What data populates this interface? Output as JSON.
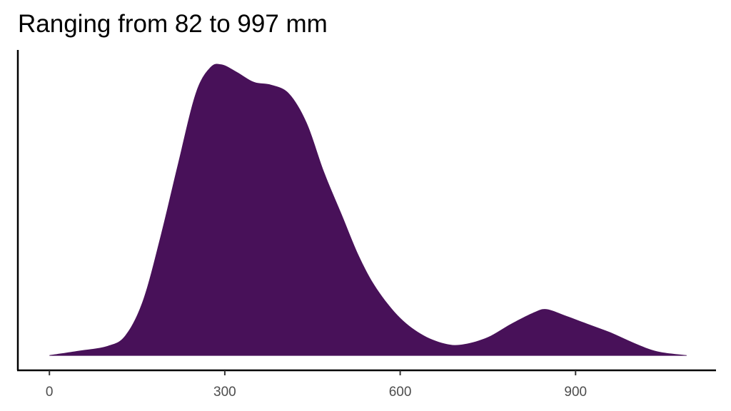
{
  "chart_data": {
    "type": "area",
    "title": "Ranging from 82 to 997 mm",
    "x": [
      0,
      50,
      100,
      130,
      160,
      190,
      220,
      250,
      275,
      295,
      320,
      350,
      380,
      410,
      440,
      470,
      500,
      530,
      560,
      600,
      640,
      680,
      710,
      750,
      790,
      830,
      850,
      880,
      920,
      960,
      1000,
      1040,
      1090
    ],
    "values": [
      0.002,
      0.017,
      0.034,
      0.07,
      0.19,
      0.41,
      0.66,
      0.9,
      0.99,
      1.0,
      0.975,
      0.94,
      0.93,
      0.9,
      0.8,
      0.63,
      0.485,
      0.34,
      0.23,
      0.13,
      0.07,
      0.04,
      0.04,
      0.064,
      0.11,
      0.15,
      0.16,
      0.14,
      0.11,
      0.08,
      0.044,
      0.015,
      0.002
    ],
    "color": "#481159",
    "xlim": [
      -54,
      1139
    ],
    "xticks": [
      0,
      300,
      600,
      900
    ],
    "ylim": [
      -0.05,
      1.05
    ]
  }
}
